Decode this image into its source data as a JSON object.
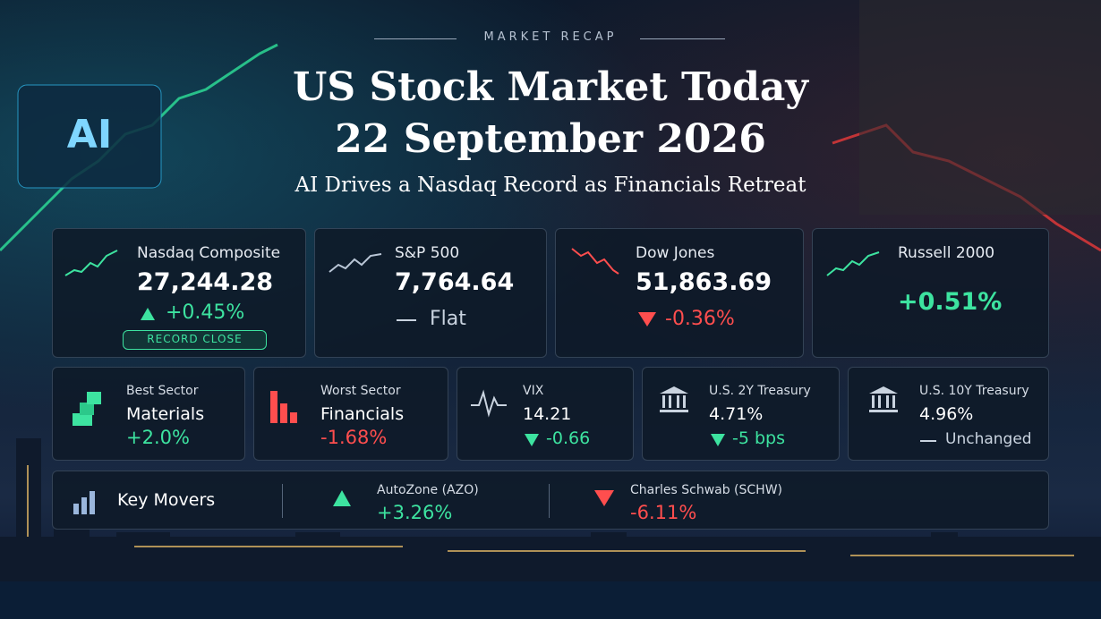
{
  "header": {
    "kicker": "MARKET RECAP",
    "title_line1": "US Stock Market Today",
    "title_line2": "22 September 2026",
    "subtitle": "AI Drives a Nasdaq Record as Financials Retreat"
  },
  "indices": [
    {
      "name": "Nasdaq Composite",
      "value": "27,244.28",
      "change": "+0.45%",
      "badge": "RECORD CLOSE"
    },
    {
      "name": "S&P 500",
      "value": "7,764.64",
      "change": "Flat"
    },
    {
      "name": "Dow Jones",
      "value": "51,863.69",
      "change": "-0.36%"
    },
    {
      "name": "Russell 2000",
      "change": "+0.51%"
    }
  ],
  "stats": [
    {
      "label": "Best Sector",
      "value": "Materials",
      "change": "+2.0%"
    },
    {
      "label": "Worst Sector",
      "value": "Financials",
      "change": "-1.68%"
    },
    {
      "label": "VIX",
      "value": "14.21",
      "change": "-0.66"
    },
    {
      "label": "U.S. 2Y Treasury",
      "value": "4.71%",
      "change": "-5 bps"
    },
    {
      "label": "U.S. 10Y Treasury",
      "value": "4.96%",
      "change": "Unchanged"
    }
  ],
  "movers": {
    "title": "Key Movers",
    "items": [
      {
        "name": "AutoZone (AZO)",
        "change": "+3.26%"
      },
      {
        "name": "Charles Schwab (SCHW)",
        "change": "-6.11%"
      }
    ]
  }
}
